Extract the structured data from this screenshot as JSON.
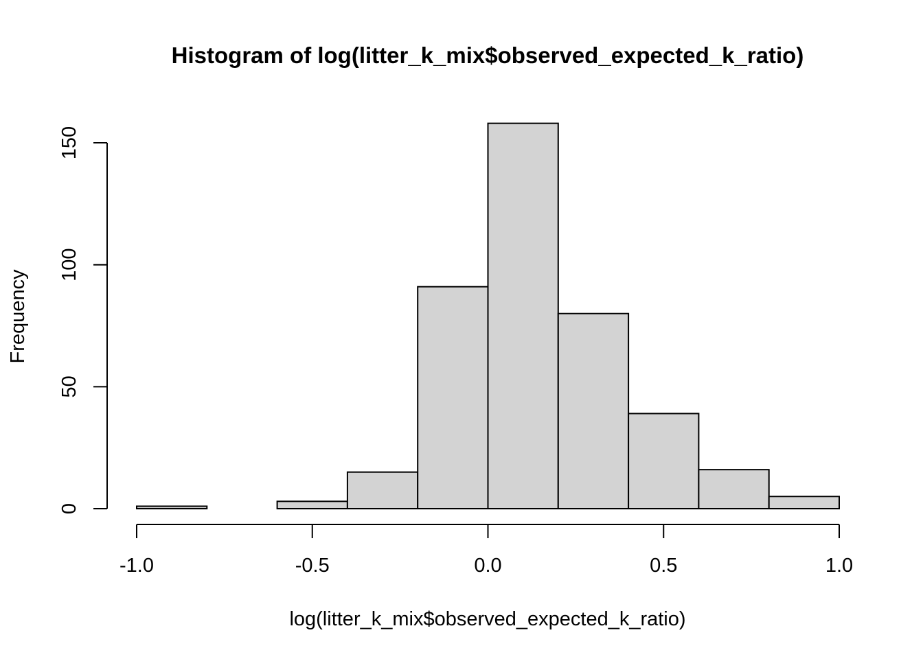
{
  "chart_data": {
    "type": "bar",
    "title": "Histogram of log(litter_k_mix$observed_expected_k_ratio)",
    "xlabel": "log(litter_k_mix$observed_expected_k_ratio)",
    "ylabel": "Frequency",
    "bins": [
      {
        "start": -1.0,
        "end": -0.8,
        "count": 1
      },
      {
        "start": -0.8,
        "end": -0.6,
        "count": 0
      },
      {
        "start": -0.6,
        "end": -0.4,
        "count": 3
      },
      {
        "start": -0.4,
        "end": -0.2,
        "count": 15
      },
      {
        "start": -0.2,
        "end": 0.0,
        "count": 91
      },
      {
        "start": 0.0,
        "end": 0.2,
        "count": 158
      },
      {
        "start": 0.2,
        "end": 0.4,
        "count": 80
      },
      {
        "start": 0.4,
        "end": 0.6,
        "count": 39
      },
      {
        "start": 0.6,
        "end": 0.8,
        "count": 16
      },
      {
        "start": 0.8,
        "end": 1.0,
        "count": 5
      }
    ],
    "xlim": [
      -1.0,
      1.0
    ],
    "ylim": [
      0,
      150
    ],
    "x_ticks": [
      -1.0,
      -0.5,
      0.0,
      0.5,
      1.0
    ],
    "x_tick_labels": [
      "-1.0",
      "-0.5",
      "0.0",
      "0.5",
      "1.0"
    ],
    "y_ticks": [
      0,
      50,
      100,
      150
    ],
    "y_tick_labels": [
      "0",
      "50",
      "100",
      "150"
    ],
    "bar_color": "#d3d3d3",
    "edge_color": "#000000",
    "grid": false
  }
}
